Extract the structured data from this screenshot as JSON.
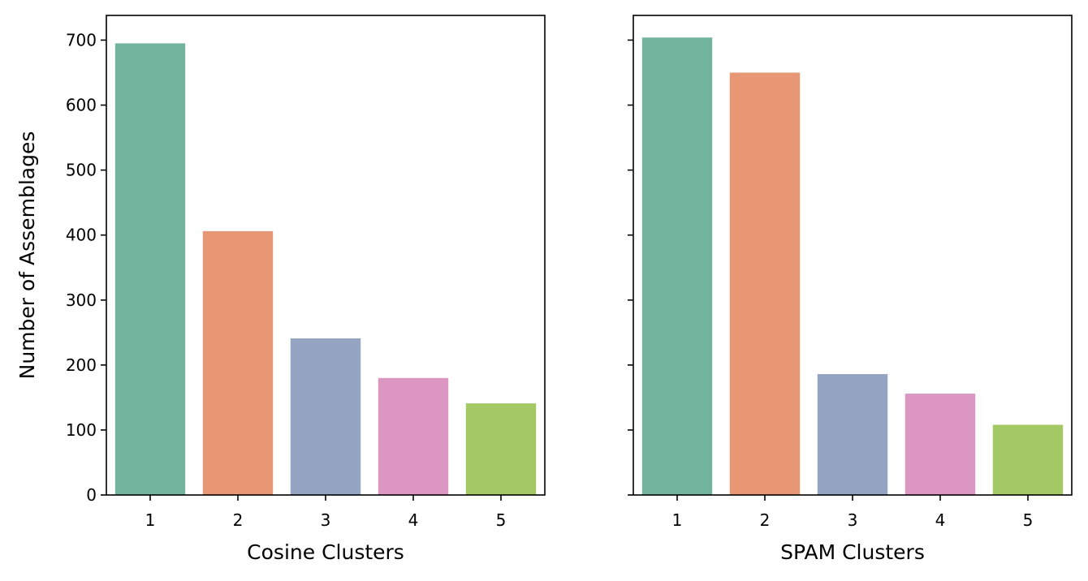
{
  "chart_data": [
    {
      "type": "bar",
      "categories": [
        "1",
        "2",
        "3",
        "4",
        "5"
      ],
      "values": [
        695,
        406,
        241,
        180,
        141
      ],
      "colors": [
        "#73b49f",
        "#e89775",
        "#94a4c3",
        "#dc96c2",
        "#a4c964"
      ],
      "xlabel": "Cosine Clusters",
      "ylabel": "Number of Assemblages",
      "ylim": [
        0,
        738
      ],
      "yticks": [
        0,
        100,
        200,
        300,
        400,
        500,
        600,
        700
      ],
      "show_ytick_labels": true,
      "grid": false
    },
    {
      "type": "bar",
      "categories": [
        "1",
        "2",
        "3",
        "4",
        "5"
      ],
      "values": [
        704,
        650,
        186,
        156,
        108
      ],
      "colors": [
        "#73b49f",
        "#e89775",
        "#94a4c3",
        "#dc96c2",
        "#a4c964"
      ],
      "xlabel": "SPAM Clusters",
      "ylabel": "",
      "ylim": [
        0,
        738
      ],
      "yticks": [
        0,
        100,
        200,
        300,
        400,
        500,
        600,
        700
      ],
      "show_ytick_labels": false,
      "grid": false
    }
  ]
}
